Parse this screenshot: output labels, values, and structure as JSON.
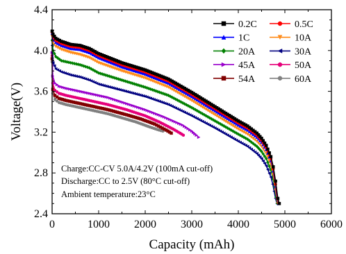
{
  "chart_data": {
    "type": "line",
    "xlabel": "Capacity (mAh)",
    "ylabel": "Voltage(V)",
    "xlim": [
      0,
      6000
    ],
    "ylim": [
      2.4,
      4.4
    ],
    "x_ticks": [
      "0",
      "1000",
      "2000",
      "3000",
      "4000",
      "5000",
      "6000"
    ],
    "y_ticks": [
      "2.4",
      "2.8",
      "3.2",
      "3.6",
      "4.0",
      "4.4"
    ],
    "grid": false,
    "legend_position": "top-right",
    "annotations": [
      "Charge:CC-CV 5.0A/4.2V (100mA cut-off)",
      "Discharge:CC to 2.5V (80°C cut-off)",
      "Ambient temperature:23°C"
    ],
    "series": [
      {
        "name": "0.2C",
        "color": "#000000",
        "marker": "square",
        "x": [
          0,
          20,
          80,
          200,
          400,
          600,
          800,
          1000,
          1500,
          2000,
          2500,
          3000,
          3500,
          4000,
          4200,
          4400,
          4500,
          4600,
          4700,
          4750,
          4800,
          4850,
          4880
        ],
        "y": [
          4.19,
          4.16,
          4.12,
          4.09,
          4.06,
          4.05,
          4.02,
          3.97,
          3.88,
          3.81,
          3.72,
          3.59,
          3.45,
          3.31,
          3.26,
          3.19,
          3.14,
          3.07,
          2.96,
          2.86,
          2.72,
          2.55,
          2.5
        ]
      },
      {
        "name": "0.5C",
        "color": "#ff0000",
        "marker": "circle",
        "x": [
          0,
          20,
          80,
          200,
          400,
          600,
          800,
          1000,
          1500,
          2000,
          2500,
          3000,
          3500,
          4000,
          4200,
          4400,
          4500,
          4600,
          4700,
          4750,
          4800,
          4840,
          4870
        ],
        "y": [
          4.18,
          4.14,
          4.1,
          4.07,
          4.04,
          4.03,
          4.0,
          3.95,
          3.86,
          3.79,
          3.7,
          3.57,
          3.43,
          3.29,
          3.24,
          3.17,
          3.12,
          3.05,
          2.94,
          2.84,
          2.69,
          2.55,
          2.5
        ]
      },
      {
        "name": "1C",
        "color": "#0000ff",
        "marker": "triangle-up",
        "x": [
          0,
          20,
          80,
          200,
          400,
          600,
          800,
          1000,
          1500,
          2000,
          2500,
          3000,
          3500,
          4000,
          4200,
          4400,
          4500,
          4600,
          4700,
          4750,
          4800,
          4830,
          4860
        ],
        "y": [
          4.17,
          4.12,
          4.08,
          4.05,
          4.02,
          4.01,
          3.98,
          3.93,
          3.84,
          3.77,
          3.68,
          3.55,
          3.41,
          3.27,
          3.22,
          3.15,
          3.1,
          3.03,
          2.92,
          2.82,
          2.67,
          2.56,
          2.5
        ]
      },
      {
        "name": "10A",
        "color": "#ff8c1a",
        "marker": "triangle-down",
        "x": [
          0,
          20,
          80,
          200,
          400,
          600,
          800,
          1000,
          1500,
          2000,
          2500,
          3000,
          3500,
          4000,
          4200,
          4400,
          4500,
          4600,
          4700,
          4750,
          4800,
          4830,
          4850
        ],
        "y": [
          4.14,
          4.08,
          4.04,
          4.01,
          3.98,
          3.96,
          3.93,
          3.88,
          3.8,
          3.73,
          3.64,
          3.51,
          3.37,
          3.23,
          3.18,
          3.11,
          3.06,
          2.99,
          2.88,
          2.78,
          2.63,
          2.54,
          2.5
        ]
      },
      {
        "name": "20A",
        "color": "#008000",
        "marker": "diamond",
        "x": [
          0,
          20,
          80,
          200,
          400,
          600,
          800,
          1000,
          1500,
          2000,
          2500,
          3000,
          3500,
          4000,
          4200,
          4400,
          4500,
          4600,
          4700,
          4750,
          4780,
          4810,
          4840
        ],
        "y": [
          4.1,
          4.0,
          3.94,
          3.9,
          3.88,
          3.86,
          3.83,
          3.78,
          3.71,
          3.64,
          3.56,
          3.44,
          3.31,
          3.18,
          3.13,
          3.06,
          3.01,
          2.94,
          2.83,
          2.74,
          2.66,
          2.56,
          2.5
        ]
      },
      {
        "name": "30A",
        "color": "#000080",
        "marker": "triangle-left",
        "x": [
          0,
          20,
          80,
          200,
          400,
          600,
          800,
          1000,
          1500,
          2000,
          2500,
          3000,
          3500,
          4000,
          4200,
          4400,
          4500,
          4600,
          4700,
          4740,
          4770,
          4800,
          4830
        ],
        "y": [
          4.05,
          3.88,
          3.82,
          3.79,
          3.76,
          3.74,
          3.71,
          3.67,
          3.61,
          3.55,
          3.47,
          3.36,
          3.24,
          3.11,
          3.06,
          2.99,
          2.94,
          2.87,
          2.76,
          2.69,
          2.62,
          2.55,
          2.5
        ]
      },
      {
        "name": "45A",
        "color": "#9900cc",
        "marker": "triangle-right",
        "x": [
          0,
          15,
          60,
          150,
          300,
          500,
          800,
          1200,
          1600,
          2000,
          2400,
          2800,
          3000,
          3100,
          3150
        ],
        "y": [
          3.98,
          3.75,
          3.68,
          3.65,
          3.63,
          3.61,
          3.58,
          3.54,
          3.48,
          3.42,
          3.35,
          3.27,
          3.21,
          3.17,
          3.15
        ]
      },
      {
        "name": "50A",
        "color": "#e6007a",
        "marker": "circle",
        "x": [
          0,
          15,
          60,
          150,
          300,
          500,
          800,
          1200,
          1600,
          2000,
          2300,
          2600,
          2750,
          2820
        ],
        "y": [
          3.95,
          3.68,
          3.61,
          3.58,
          3.56,
          3.54,
          3.51,
          3.47,
          3.42,
          3.36,
          3.3,
          3.23,
          3.19,
          3.17
        ]
      },
      {
        "name": "54A",
        "color": "#800000",
        "marker": "square",
        "x": [
          0,
          15,
          60,
          150,
          300,
          500,
          800,
          1200,
          1600,
          1900,
          2200,
          2450,
          2560
        ],
        "y": [
          3.92,
          3.62,
          3.56,
          3.53,
          3.51,
          3.49,
          3.46,
          3.42,
          3.37,
          3.33,
          3.28,
          3.22,
          3.19
        ]
      },
      {
        "name": "60A",
        "color": "#808080",
        "marker": "circle",
        "x": [
          0,
          15,
          60,
          150,
          300,
          500,
          800,
          1200,
          1500,
          1800,
          2100,
          2300,
          2380
        ],
        "y": [
          3.89,
          3.58,
          3.52,
          3.49,
          3.47,
          3.45,
          3.42,
          3.38,
          3.34,
          3.3,
          3.25,
          3.22,
          3.21
        ]
      }
    ]
  }
}
